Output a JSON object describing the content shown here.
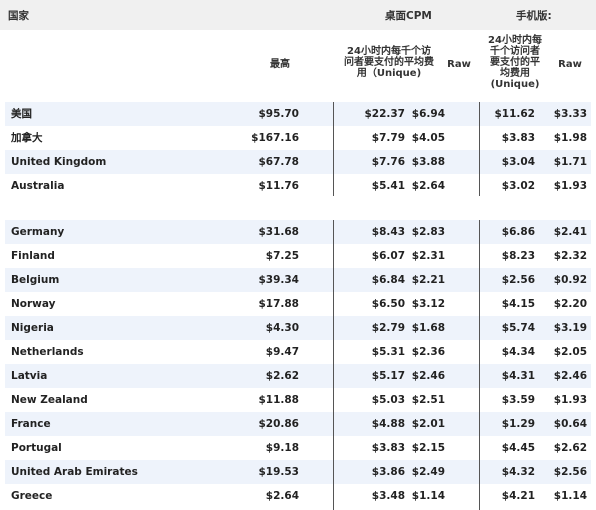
{
  "header": {
    "country_label": "国家",
    "desktop_label": "桌面CPM",
    "mobile_label": "手机版:"
  },
  "subheader": {
    "max_label": "最高",
    "desktop_unique_label": [
      "24小时内每千个访",
      "问者要支付的平均费",
      "用（Unique)"
    ],
    "desktop_raw_label": "Raw",
    "mobile_unique_label": [
      "24小时内每",
      "千个访问者",
      "要支付的平",
      "均费用",
      "(Unique)"
    ],
    "mobile_raw_label": "Raw"
  },
  "rows_group1": [
    {
      "country": "美国",
      "max": "$95.70",
      "desk_unique": "$22.37",
      "desk_raw": "$6.94",
      "mob_unique": "$11.62",
      "mob_raw": "$3.33"
    },
    {
      "country": "加拿大",
      "max": "$167.16",
      "desk_unique": "$7.79",
      "desk_raw": "$4.05",
      "mob_unique": "$3.83",
      "mob_raw": "$1.98"
    },
    {
      "country": "United Kingdom",
      "max": "$67.78",
      "desk_unique": "$7.76",
      "desk_raw": "$3.88",
      "mob_unique": "$3.04",
      "mob_raw": "$1.71"
    },
    {
      "country": "Australia",
      "max": "$11.76",
      "desk_unique": "$5.41",
      "desk_raw": "$2.64",
      "mob_unique": "$3.02",
      "mob_raw": "$1.93"
    }
  ],
  "rows_group2": [
    {
      "country": "Germany",
      "max": "$31.68",
      "desk_unique": "$8.43",
      "desk_raw": "$2.83",
      "mob_unique": "$6.86",
      "mob_raw": "$2.41"
    },
    {
      "country": "Finland",
      "max": "$7.25",
      "desk_unique": "$6.07",
      "desk_raw": "$2.31",
      "mob_unique": "$8.23",
      "mob_raw": "$2.32"
    },
    {
      "country": "Belgium",
      "max": "$39.34",
      "desk_unique": "$6.84",
      "desk_raw": "$2.21",
      "mob_unique": "$2.56",
      "mob_raw": "$0.92"
    },
    {
      "country": "Norway",
      "max": "$17.88",
      "desk_unique": "$6.50",
      "desk_raw": "$3.12",
      "mob_unique": "$4.15",
      "mob_raw": "$2.20"
    },
    {
      "country": "Nigeria",
      "max": "$4.30",
      "desk_unique": "$2.79",
      "desk_raw": "$1.68",
      "mob_unique": "$5.74",
      "mob_raw": "$3.19"
    },
    {
      "country": "Netherlands",
      "max": "$9.47",
      "desk_unique": "$5.31",
      "desk_raw": "$2.36",
      "mob_unique": "$4.34",
      "mob_raw": "$2.05"
    },
    {
      "country": "Latvia",
      "max": "$2.62",
      "desk_unique": "$5.17",
      "desk_raw": "$2.46",
      "mob_unique": "$4.31",
      "mob_raw": "$2.46"
    },
    {
      "country": "New Zealand",
      "max": "$11.88",
      "desk_unique": "$5.03",
      "desk_raw": "$2.51",
      "mob_unique": "$3.59",
      "mob_raw": "$1.93"
    },
    {
      "country": "France",
      "max": "$20.86",
      "desk_unique": "$4.88",
      "desk_raw": "$2.01",
      "mob_unique": "$1.29",
      "mob_raw": "$0.64"
    },
    {
      "country": "Portugal",
      "max": "$9.18",
      "desk_unique": "$3.83",
      "desk_raw": "$2.15",
      "mob_unique": "$4.45",
      "mob_raw": "$2.62"
    },
    {
      "country": "United Arab Emirates",
      "max": "$19.53",
      "desk_unique": "$3.86",
      "desk_raw": "$2.49",
      "mob_unique": "$4.32",
      "mob_raw": "$2.56"
    },
    {
      "country": "Greece",
      "max": "$2.64",
      "desk_unique": "$3.48",
      "desk_raw": "$1.14",
      "mob_unique": "$4.21",
      "mob_raw": "$1.14"
    }
  ],
  "colors": {
    "header_bg": "#f0f0f0",
    "row_alt_bg": "#eef3fb",
    "divider": "#555555"
  }
}
